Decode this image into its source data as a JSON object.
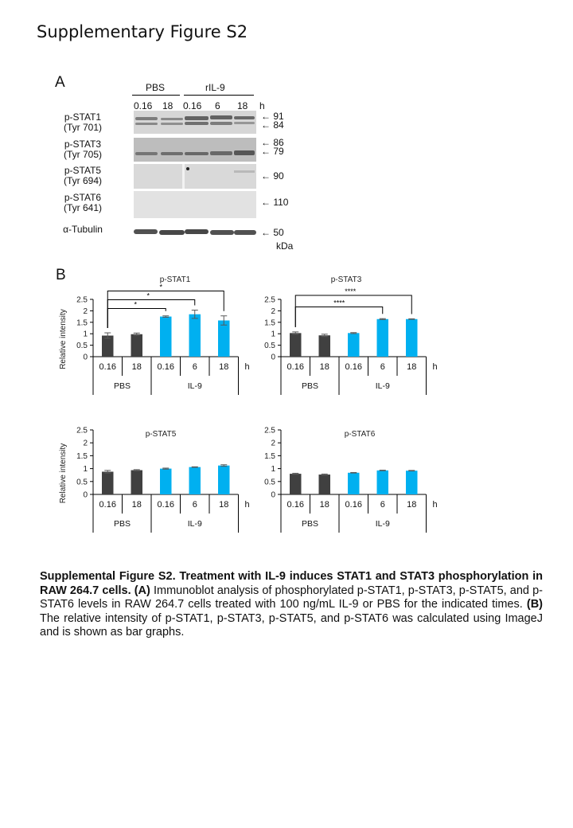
{
  "header": {
    "title": "Supplementary Figure S2"
  },
  "panel_a": {
    "letter": "A",
    "groups": [
      {
        "label": "PBS"
      },
      {
        "label": "rIL-9"
      }
    ],
    "lanes": [
      "0.16",
      "18",
      "0.16",
      "6",
      "18"
    ],
    "time_unit": "h",
    "blots": [
      {
        "name": "p-STAT1",
        "site": "(Tyr 701)",
        "markers": [
          "91",
          "84"
        ]
      },
      {
        "name": "p-STAT3",
        "site": "(Tyr 705)",
        "markers": [
          "86",
          "79"
        ]
      },
      {
        "name": "p-STAT5",
        "site": "(Tyr 694)",
        "markers": [
          "90"
        ]
      },
      {
        "name": "p-STAT6",
        "site": "(Tyr 641)",
        "markers": [
          "110"
        ]
      },
      {
        "name": "α-Tubulin",
        "site": "",
        "markers": [
          "50"
        ]
      }
    ],
    "mw_unit": "kDa",
    "arrow": "←"
  },
  "panel_b": {
    "letter": "B",
    "ylabel": "Relative intensity"
  },
  "colors": {
    "pbs": "#404040",
    "il9": "#00b0f0",
    "axis": "#000000",
    "error": "#595959"
  },
  "chart_data": [
    {
      "type": "bar",
      "title": "p-STAT1",
      "categories": [
        "0.16",
        "18",
        "0.16",
        "6",
        "18"
      ],
      "groups": [
        {
          "label": "PBS",
          "span": [
            0,
            1
          ]
        },
        {
          "label": "IL-9",
          "span": [
            2,
            4
          ]
        }
      ],
      "time_unit": "h",
      "values": [
        0.92,
        0.98,
        1.75,
        1.85,
        1.58
      ],
      "errors": [
        0.12,
        0.05,
        0.03,
        0.18,
        0.2
      ],
      "ylabel": "Relative intensity",
      "ylim": [
        0,
        2.5
      ],
      "yticks": [
        "0",
        "0.5",
        "1",
        "1.5",
        "2",
        "2.5"
      ],
      "significance": [
        {
          "from": 0,
          "to": 2,
          "label": "*"
        },
        {
          "from": 0,
          "to": 3,
          "label": "*"
        },
        {
          "from": 0,
          "to": 4,
          "label": "*"
        }
      ]
    },
    {
      "type": "bar",
      "title": "p-STAT3",
      "categories": [
        "0.16",
        "18",
        "0.16",
        "6",
        "18"
      ],
      "groups": [
        {
          "label": "PBS",
          "span": [
            0,
            1
          ]
        },
        {
          "label": "IL-9",
          "span": [
            2,
            4
          ]
        }
      ],
      "time_unit": "h",
      "values": [
        1.03,
        0.93,
        1.03,
        1.64,
        1.64
      ],
      "errors": [
        0.05,
        0.05,
        0.02,
        0.02,
        0.01
      ],
      "ylabel": "",
      "ylim": [
        0,
        2.5
      ],
      "yticks": [
        "0",
        "0.5",
        "1",
        "1.5",
        "2",
        "2.5"
      ],
      "significance": [
        {
          "from": 0,
          "to": 3,
          "label": "****"
        },
        {
          "from": 0,
          "to": 4,
          "label": "****"
        }
      ]
    },
    {
      "type": "bar",
      "title": "p-STAT5",
      "categories": [
        "0.16",
        "18",
        "0.16",
        "6",
        "18"
      ],
      "groups": [
        {
          "label": "PBS",
          "span": [
            0,
            1
          ]
        },
        {
          "label": "IL-9",
          "span": [
            2,
            4
          ]
        }
      ],
      "time_unit": "h",
      "values": [
        0.88,
        0.94,
        1.0,
        1.06,
        1.12
      ],
      "errors": [
        0.05,
        0.02,
        0.02,
        0.01,
        0.03
      ],
      "ylabel": "Relative intensity",
      "ylim": [
        0,
        2.5
      ],
      "yticks": [
        "0",
        "0.5",
        "1",
        "1.5",
        "2",
        "2.5"
      ],
      "significance": []
    },
    {
      "type": "bar",
      "title": "p-STAT6",
      "categories": [
        "0.16",
        "18",
        "0.16",
        "6",
        "18"
      ],
      "groups": [
        {
          "label": "PBS",
          "span": [
            0,
            1
          ]
        },
        {
          "label": "IL-9",
          "span": [
            2,
            4
          ]
        }
      ],
      "time_unit": "h",
      "values": [
        0.8,
        0.77,
        0.84,
        0.93,
        0.92
      ],
      "errors": [
        0.02,
        0.02,
        0.01,
        0.01,
        0.01
      ],
      "ylabel": "",
      "ylim": [
        0,
        2.5
      ],
      "yticks": [
        "0",
        "0.5",
        "1",
        "1.5",
        "2",
        "2.5"
      ],
      "significance": []
    }
  ],
  "caption": {
    "bold_lead": "Supplemental Figure S2. Treatment with IL-9 induces STAT1 and STAT3 phosphorylation in RAW 264.7 cells.",
    "a_label": "(A)",
    "a_text": "Immunoblot analysis of phosphorylated p-STAT1, p-STAT3, p-STAT5, and p-STAT6 levels in RAW 264.7 cells treated with 100 ng/mL IL-9 or PBS for the indicated times.",
    "b_label": "(B)",
    "b_text": "The relative intensity of p-STAT1, p-STAT3, p-STAT5, and p-STAT6 was calculated using ImageJ and is shown as bar graphs."
  }
}
